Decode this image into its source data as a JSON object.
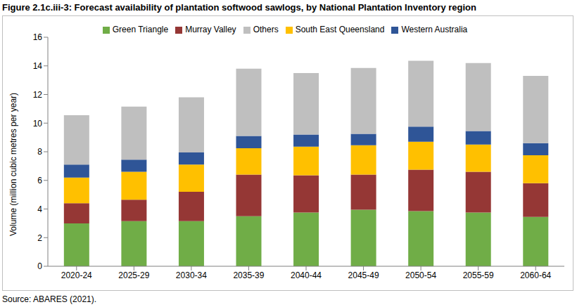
{
  "chart_data": {
    "type": "bar",
    "title": "Figure 2.1c.iii-3: Forecast availability of plantation softwood sawlogs, by National Plantation Inventory region",
    "source": "Source: ABARES (2021).",
    "y_label": "Volume (million cubic metres per year)",
    "categories": [
      "2020-24",
      "2025-29",
      "2030-34",
      "2035-39",
      "2040-44",
      "2045-49",
      "2050-54",
      "2055-59",
      "2060-64"
    ],
    "series": [
      {
        "name": "Green Triangle",
        "color": "#70ad47",
        "values": [
          3.0,
          3.15,
          3.15,
          3.5,
          3.75,
          3.95,
          3.85,
          3.75,
          3.45
        ]
      },
      {
        "name": "Murray Valley",
        "color": "#953735",
        "values": [
          1.4,
          1.5,
          2.05,
          2.9,
          2.6,
          2.45,
          2.9,
          2.85,
          2.35
        ]
      },
      {
        "name": "South East Queensland",
        "color": "#ffc000",
        "values": [
          1.8,
          1.95,
          1.9,
          1.85,
          2.0,
          2.05,
          1.95,
          1.9,
          1.95
        ]
      },
      {
        "name": "Western Australia",
        "color": "#2f5597",
        "values": [
          0.9,
          0.85,
          0.85,
          0.85,
          0.85,
          0.8,
          1.05,
          0.95,
          0.85
        ]
      },
      {
        "name": "Others",
        "color": "#bfbfbf",
        "values": [
          3.45,
          3.7,
          3.85,
          4.7,
          4.3,
          4.6,
          4.6,
          4.75,
          4.7
        ]
      }
    ],
    "ylim": [
      0,
      16
    ],
    "yticks": [
      0,
      2,
      4,
      6,
      8,
      10,
      12,
      14,
      16
    ],
    "stacked": true,
    "grid": false,
    "legend": "top"
  }
}
